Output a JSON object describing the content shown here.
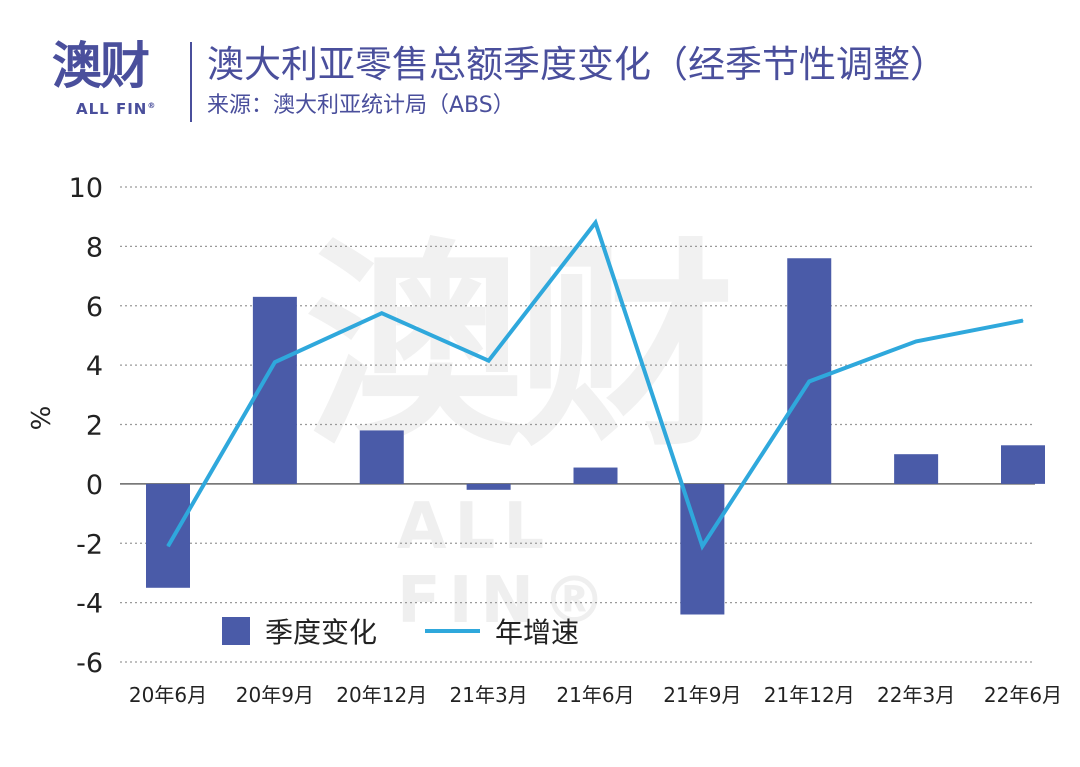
{
  "header": {
    "logo_cn": "澳财",
    "logo_en": "ALL FIN",
    "logo_reg": "®",
    "title": "澳大利亚零售总额季度变化（经季节性调整）",
    "subtitle": "来源：澳大利亚统计局（ABS）"
  },
  "watermark": {
    "cn": "澳财",
    "en": "ALL FIN®"
  },
  "colors": {
    "bar": "#4a5ba8",
    "line": "#2fa8dc",
    "grid": "#9a9a9a",
    "brand": "#4a4f9c"
  },
  "chart_data": {
    "type": "bar",
    "title": "澳大利亚零售总额季度变化（经季节性调整）",
    "ylabel": "%",
    "xlabel": "",
    "ylim": [
      -6,
      10
    ],
    "yticks": [
      10,
      8,
      6,
      4,
      2,
      0,
      -2,
      -4,
      -6
    ],
    "grid": "horizontal dotted",
    "legend_position": "bottom-left",
    "categories": [
      "20年6月",
      "20年9月",
      "20年12月",
      "21年3月",
      "21年6月",
      "21年9月",
      "21年12月",
      "22年3月",
      "22年6月"
    ],
    "series": [
      {
        "name": "季度变化",
        "type": "bar",
        "values": [
          -3.5,
          6.3,
          1.8,
          -0.2,
          0.55,
          -4.4,
          7.6,
          1.0,
          1.3
        ]
      },
      {
        "name": "年增速",
        "type": "line",
        "values": [
          -2.1,
          4.1,
          5.75,
          4.15,
          8.8,
          -2.1,
          3.45,
          4.8,
          5.5
        ]
      }
    ]
  }
}
